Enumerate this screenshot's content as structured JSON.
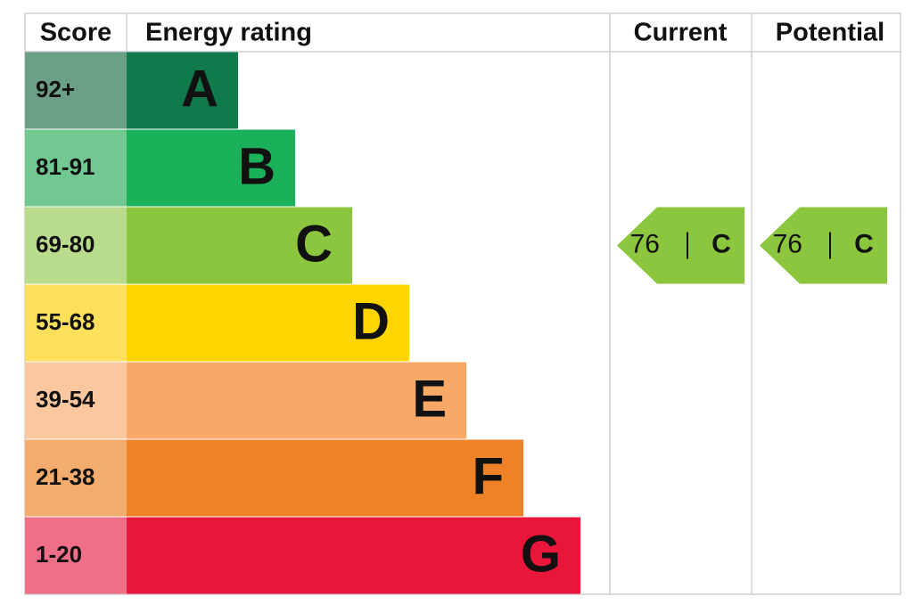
{
  "headers": {
    "score": "Score",
    "rating": "Energy rating",
    "current": "Current",
    "potential": "Potential"
  },
  "bands": [
    {
      "score": "92+",
      "letter": "A",
      "color": "#117a4d",
      "score_color": "#6b9f86"
    },
    {
      "score": "81-91",
      "letter": "B",
      "color": "#1bb15a",
      "score_color": "#72c891"
    },
    {
      "score": "69-80",
      "letter": "C",
      "color": "#8cc63f",
      "score_color": "#b8dc8b"
    },
    {
      "score": "55-68",
      "letter": "D",
      "color": "#ffd500",
      "score_color": "#ffe05c"
    },
    {
      "score": "39-54",
      "letter": "E",
      "color": "#f8a867",
      "score_color": "#fac79f"
    },
    {
      "score": "21-38",
      "letter": "F",
      "color": "#ee8226",
      "score_color": "#f3ab6e"
    },
    {
      "score": "1-20",
      "letter": "G",
      "color": "#e9153b",
      "score_color": "#ef6f88"
    }
  ],
  "current": {
    "value": 76,
    "letter": "C"
  },
  "potential": {
    "value": 76,
    "letter": "C"
  }
}
